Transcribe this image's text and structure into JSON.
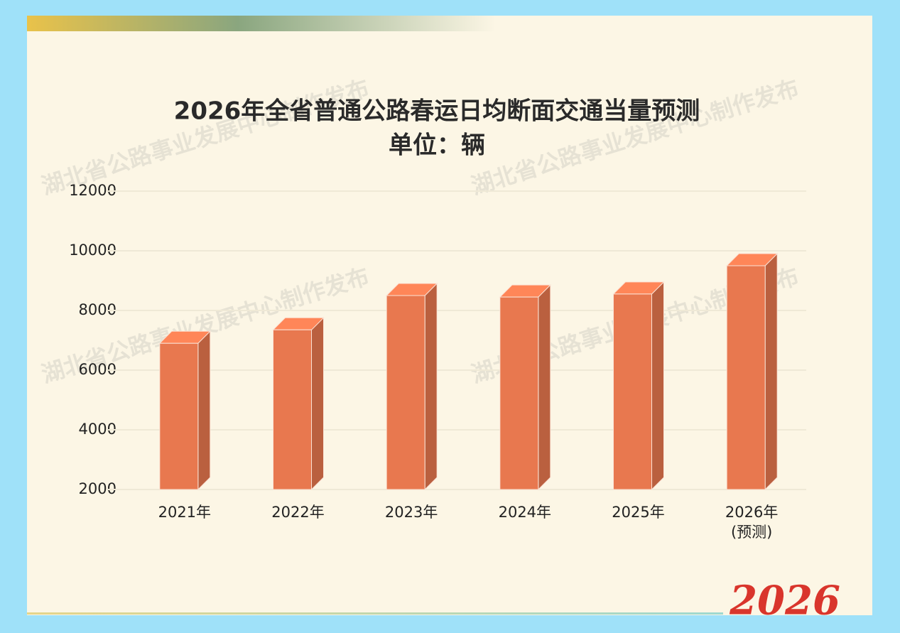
{
  "chart_data": {
    "type": "bar3d",
    "title": "2026年全省普通公路春运日均断面交通当量预测",
    "subtitle": "单位：辆",
    "categories": [
      "2021年",
      "2022年",
      "2023年",
      "2024年",
      "2025年",
      "2026年\n(预测)"
    ],
    "values": [
      6900,
      7350,
      8500,
      8450,
      8550,
      9500
    ],
    "color": "#e8784f",
    "ylim": [
      2000,
      12000
    ],
    "yticks": [
      2000,
      4000,
      6000,
      8000,
      10000,
      12000
    ],
    "grid": true
  },
  "watermark": "湖北省公路事业发展中心制作发布",
  "badge": "2026"
}
